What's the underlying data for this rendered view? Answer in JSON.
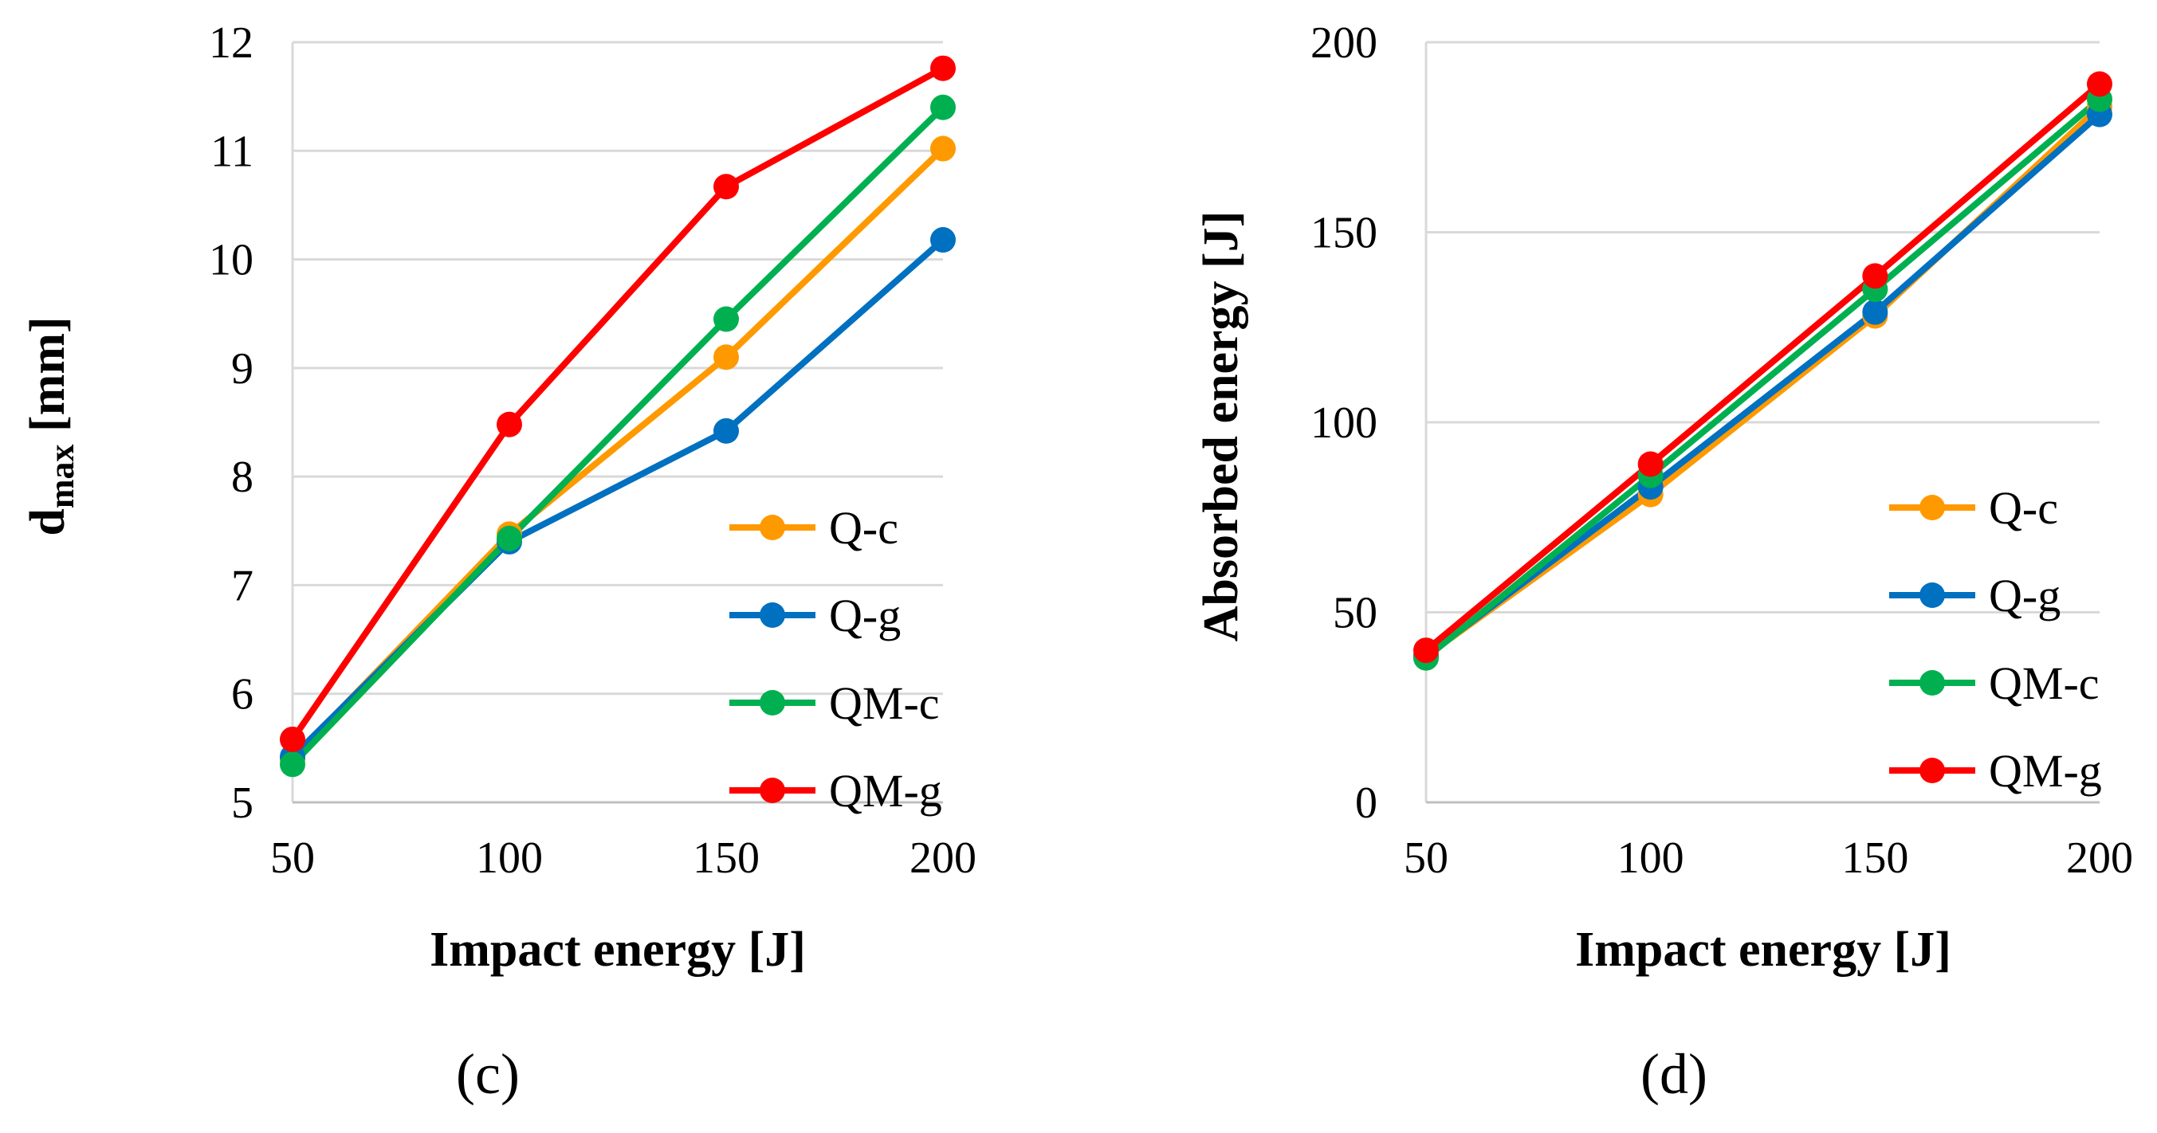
{
  "colors": {
    "Q-c": "#FF9900",
    "Q-g": "#0070C0",
    "QM-c": "#00B050",
    "QM-g": "#FF0000"
  },
  "chart_data": [
    {
      "type": "line",
      "panel_label": "(c)",
      "xlabel": "Impact energy [J]",
      "ylabel_main": "d",
      "ylabel_sub": "max",
      "ylabel_tail": " [mm]",
      "x": [
        50,
        100,
        150,
        200
      ],
      "xticks": [
        "50",
        "100",
        "150",
        "200"
      ],
      "ylim": [
        5,
        12
      ],
      "yticks": [
        "5",
        "6",
        "7",
        "8",
        "9",
        "10",
        "11",
        "12"
      ],
      "legend_position": "bottom-right",
      "series": [
        {
          "name": "Q-c",
          "values": [
            5.4,
            7.47,
            9.1,
            11.02
          ]
        },
        {
          "name": "Q-g",
          "values": [
            5.42,
            7.4,
            8.42,
            10.18
          ]
        },
        {
          "name": "QM-c",
          "values": [
            5.35,
            7.43,
            9.45,
            11.4
          ]
        },
        {
          "name": "QM-g",
          "values": [
            5.58,
            8.48,
            10.67,
            11.76
          ]
        }
      ]
    },
    {
      "type": "line",
      "panel_label": "(d)",
      "xlabel": "Impact energy [J]",
      "ylabel": "Absorbed energy [J]",
      "x": [
        50,
        100,
        150,
        200
      ],
      "xticks": [
        "50",
        "100",
        "150",
        "200"
      ],
      "ylim": [
        0,
        200
      ],
      "yticks": [
        "0",
        "50",
        "100",
        "150",
        "200"
      ],
      "legend_position": "bottom-right",
      "series": [
        {
          "name": "Q-c",
          "values": [
            38.5,
            81,
            128,
            183
          ]
        },
        {
          "name": "Q-g",
          "values": [
            38.5,
            83,
            129,
            181
          ]
        },
        {
          "name": "QM-c",
          "values": [
            38,
            86,
            135,
            185
          ]
        },
        {
          "name": "QM-g",
          "values": [
            40,
            89,
            138.5,
            189
          ]
        }
      ]
    }
  ]
}
